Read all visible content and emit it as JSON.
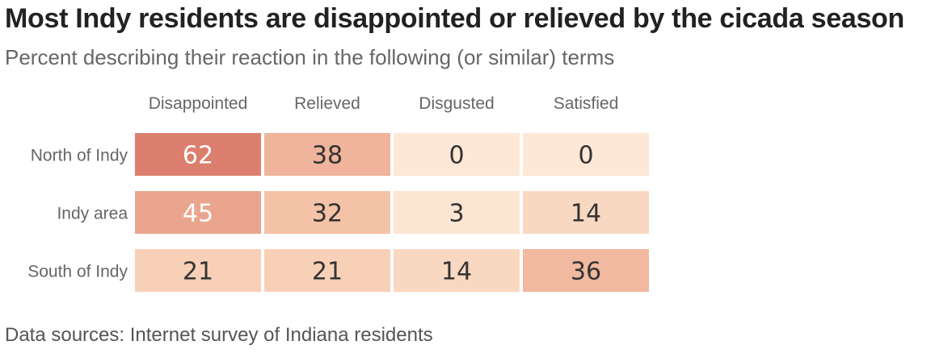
{
  "header": {
    "title": "Most Indy residents are disappointed or relieved by the cicada season",
    "subtitle": "Percent describing their reaction in the following (or similar) terms"
  },
  "footer": {
    "source": "Data sources: Internet survey of Indiana residents"
  },
  "chart_data": {
    "type": "heatmap",
    "title": "Most Indy residents are disappointed or relieved by the cicada season",
    "subtitle": "Percent describing their reaction in the following (or similar) terms",
    "columns": [
      "Disappointed",
      "Relieved",
      "Disgusted",
      "Satisfied"
    ],
    "rows": [
      "North of Indy",
      "Indy area",
      "South of Indy"
    ],
    "values": [
      [
        62,
        38,
        0,
        0
      ],
      [
        45,
        32,
        3,
        14
      ],
      [
        21,
        21,
        14,
        36
      ]
    ],
    "color_scale": {
      "low": "#fde8d5",
      "mid": "#f5c4a8",
      "high": "#dc7f6e"
    },
    "text_colors": {
      "dark": "#333333",
      "light": "#ffffff"
    },
    "legend": "none",
    "grid": false
  }
}
